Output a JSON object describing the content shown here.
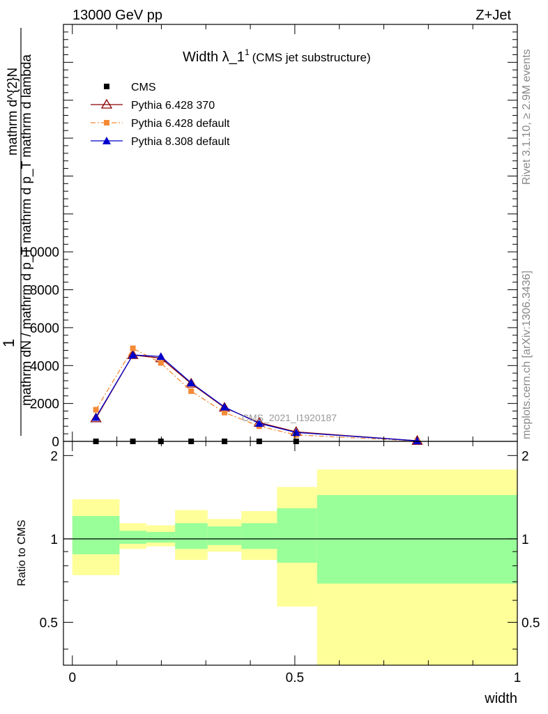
{
  "header": {
    "energy": "13000 GeV pp",
    "process": "Z+Jet"
  },
  "side_labels": {
    "rivet": "Rivet 3.1.10, ≥ 2.9M events",
    "mcplots": "mcplots.cern.ch [arXiv:1306.3436]"
  },
  "watermark": "CMS_2021_I1920187",
  "chart_data": [
    {
      "type": "line",
      "title": "Width λ_1",
      "title_sup": "1",
      "subtitle": "(CMS jet substructure)",
      "ylabel_top": "1",
      "ylabel_num": "mathrm d^{2}N",
      "ylabel_den": "mathrm dN / mathrm d p_T mathrm d p_T mathrm d lambda",
      "ylim": [
        0,
        22000
      ],
      "yticks": [
        0,
        2000,
        4000,
        6000,
        8000,
        10000
      ],
      "ytick_labels": [
        "0",
        "2000",
        "4000",
        "6000",
        "8000",
        "10000"
      ],
      "xlim": [
        -0.02,
        1.0
      ],
      "legend_placement": "top-left",
      "series": [
        {
          "name": "CMS",
          "marker": "square",
          "color": "#000000",
          "x": [
            0.053,
            0.136,
            0.199,
            0.267,
            0.342,
            0.42,
            0.503
          ],
          "y": [
            0,
            0,
            0,
            0,
            0,
            0,
            0
          ]
        },
        {
          "name": "Pythia 6.428 370",
          "marker": "open-triangle",
          "color": "#8b0000",
          "dash": "",
          "x": [
            0.053,
            0.136,
            0.199,
            0.267,
            0.342,
            0.42,
            0.503,
            0.775
          ],
          "y": [
            1220,
            4560,
            4390,
            3050,
            1780,
            990,
            500,
            30
          ]
        },
        {
          "name": "Pythia 6.428 default",
          "marker": "square",
          "color": "#f58a35",
          "dash": "7,3,2,3",
          "x": [
            0.053,
            0.136,
            0.199,
            0.267,
            0.342,
            0.42,
            0.503,
            0.775
          ],
          "y": [
            1670,
            4910,
            4140,
            2650,
            1520,
            800,
            340,
            20
          ]
        },
        {
          "name": "Pythia 8.308 default",
          "marker": "triangle",
          "color": "#0000cc",
          "dash": "",
          "x": [
            0.053,
            0.136,
            0.199,
            0.267,
            0.342,
            0.42,
            0.503,
            0.775
          ],
          "y": [
            1270,
            4560,
            4480,
            3090,
            1810,
            950,
            470,
            30
          ]
        }
      ]
    },
    {
      "type": "area",
      "ylabel": "Ratio to CMS",
      "xlabel": "width",
      "xlim": [
        -0.02,
        1.0
      ],
      "ylim": [
        0.35,
        2.25
      ],
      "yticks": [
        0.5,
        1,
        2
      ],
      "ytick_labels": [
        "0.5",
        "1",
        "2"
      ],
      "xticks": [
        0,
        0.5,
        1
      ],
      "xtick_labels": [
        "0",
        "0.5",
        "1"
      ],
      "reference_line": 1,
      "colors": {
        "inner_band": "#99ff99",
        "outer_band": "#ffff99"
      },
      "bins": [
        {
          "lo": 0.0,
          "hi": 0.106,
          "inner": [
            0.88,
            1.21
          ],
          "outer": [
            0.74,
            1.39
          ]
        },
        {
          "lo": 0.106,
          "hi": 0.166,
          "inner": [
            0.96,
            1.07
          ],
          "outer": [
            0.92,
            1.14
          ]
        },
        {
          "lo": 0.166,
          "hi": 0.231,
          "inner": [
            0.97,
            1.06
          ],
          "outer": [
            0.94,
            1.12
          ]
        },
        {
          "lo": 0.231,
          "hi": 0.304,
          "inner": [
            0.92,
            1.14
          ],
          "outer": [
            0.84,
            1.27
          ]
        },
        {
          "lo": 0.304,
          "hi": 0.38,
          "inner": [
            0.95,
            1.11
          ],
          "outer": [
            0.9,
            1.18
          ]
        },
        {
          "lo": 0.38,
          "hi": 0.46,
          "inner": [
            0.92,
            1.14
          ],
          "outer": [
            0.84,
            1.26
          ]
        },
        {
          "lo": 0.46,
          "hi": 0.55,
          "inner": [
            0.82,
            1.29
          ],
          "outer": [
            0.57,
            1.54
          ]
        },
        {
          "lo": 0.55,
          "hi": 1.0,
          "inner": [
            0.69,
            1.44
          ],
          "outer": [
            0.35,
            1.78
          ]
        }
      ]
    }
  ]
}
